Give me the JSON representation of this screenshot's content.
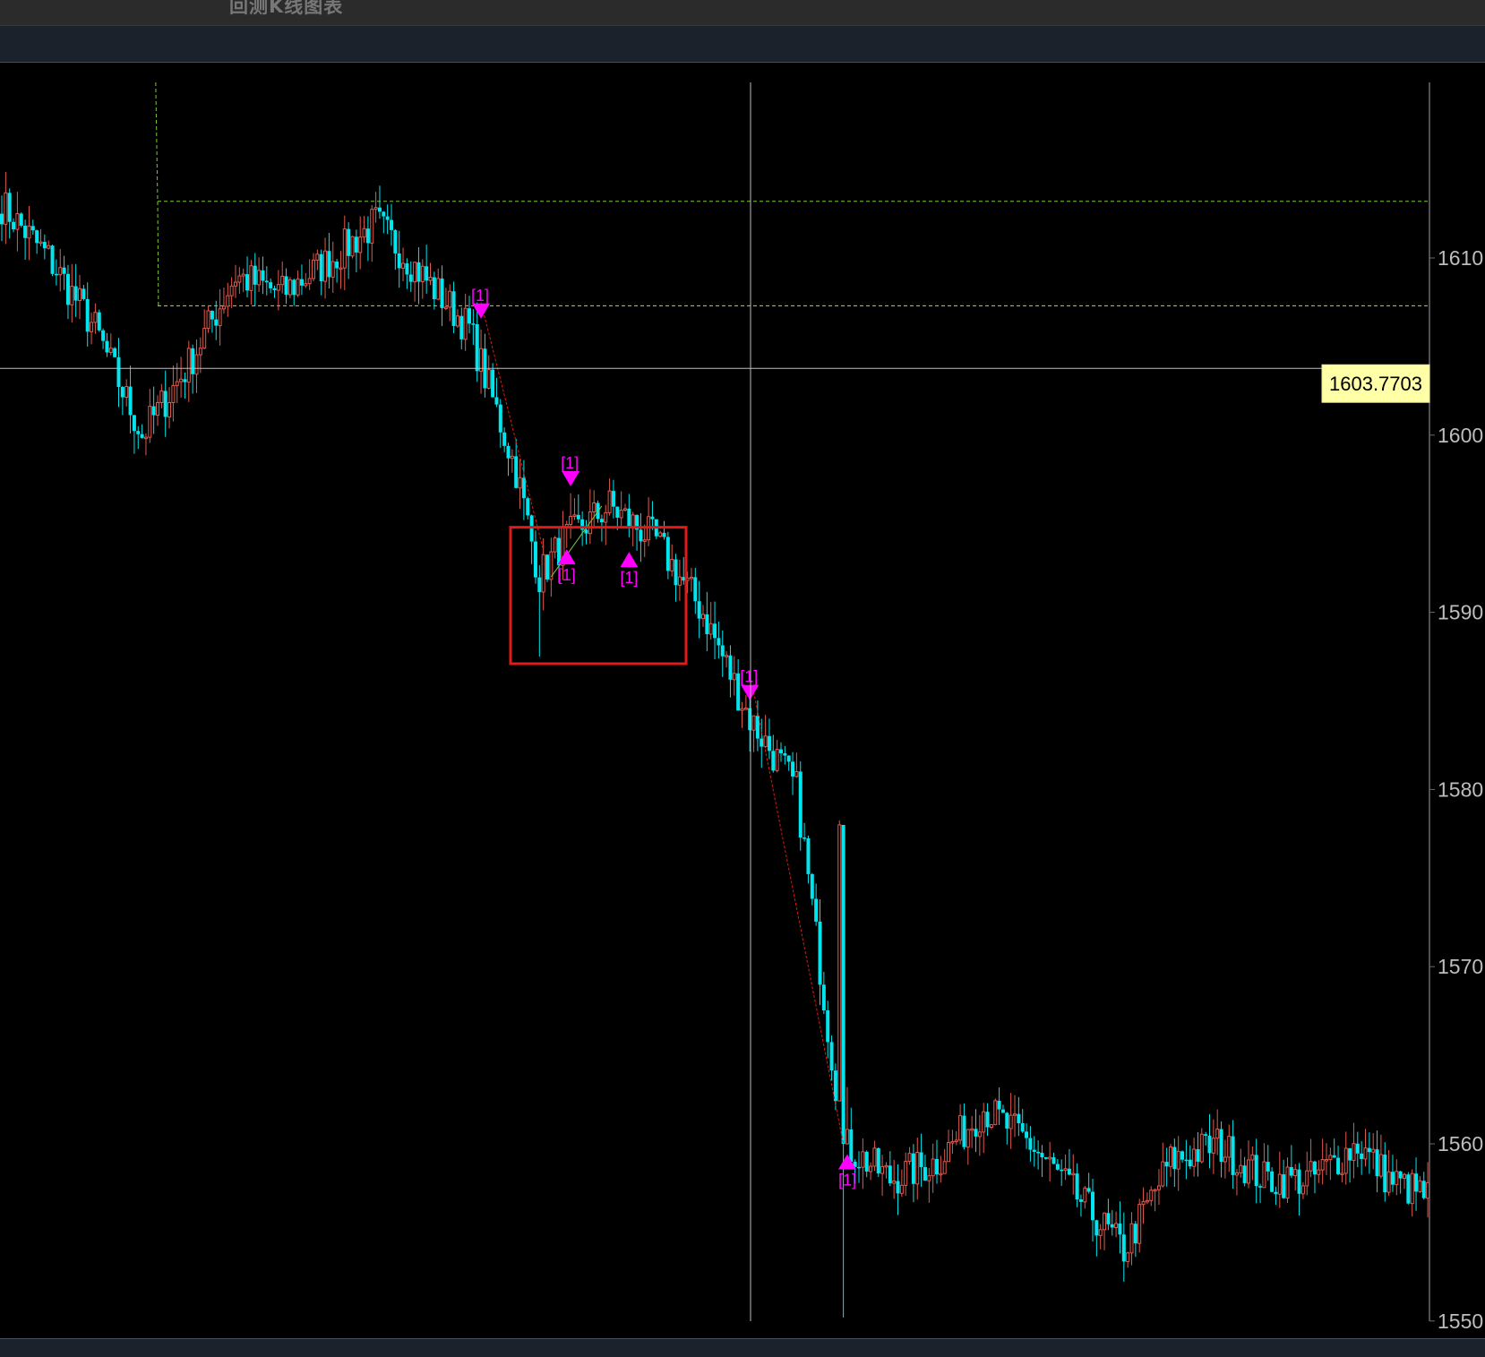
{
  "window": {
    "title": "回测K线图表"
  },
  "colors": {
    "background": "#000000",
    "bull": "#e05a4e",
    "bear": "#00e5ee",
    "signal": "#ff00ff",
    "trend_line": "#e0190f",
    "box": "#e0191b",
    "level_upper": "#7ec833",
    "level_lower": "#d4d40a",
    "crosshair": "#bdbdbd",
    "price_tag_bg": "#ffffa8",
    "axis_text": "#bdbdbd"
  },
  "crosshair": {
    "price_label": "1603.7703"
  },
  "signal_label": "[1]",
  "chart_data": {
    "type": "candlestick",
    "title": "",
    "ylim": [
      1550,
      1615
    ],
    "y_ticks": [
      {
        "value": 1610,
        "label": "1610"
      },
      {
        "value": 1600,
        "label": "1600"
      },
      {
        "value": 1590,
        "label": "1590"
      },
      {
        "value": 1580,
        "label": "1580"
      },
      {
        "value": 1570,
        "label": "1570"
      },
      {
        "value": 1560,
        "label": "1560"
      },
      {
        "value": 1550,
        "label": "1550"
      }
    ],
    "horizontal_levels": [
      {
        "name": "upper",
        "value": 1613.2
      },
      {
        "name": "lower",
        "value": 1607.3
      }
    ],
    "crosshair_price": 1603.77,
    "anchors": [
      [
        0,
        1613
      ],
      [
        12,
        1610
      ],
      [
        24,
        1606
      ],
      [
        36,
        1600
      ],
      [
        48,
        1604
      ],
      [
        60,
        1609
      ],
      [
        72,
        1608
      ],
      [
        85,
        1610
      ],
      [
        96,
        1612
      ],
      [
        108,
        1609
      ],
      [
        120,
        1606
      ],
      [
        132,
        1598
      ],
      [
        138,
        1592
      ],
      [
        144,
        1594
      ],
      [
        156,
        1596
      ],
      [
        168,
        1594
      ],
      [
        180,
        1590
      ],
      [
        192,
        1584
      ],
      [
        204,
        1580
      ],
      [
        216,
        1560
      ],
      [
        228,
        1558
      ],
      [
        240,
        1559
      ],
      [
        252,
        1562
      ],
      [
        264,
        1560
      ],
      [
        276,
        1557
      ],
      [
        288,
        1554
      ],
      [
        300,
        1559
      ],
      [
        312,
        1560
      ],
      [
        324,
        1558
      ],
      [
        336,
        1558
      ],
      [
        348,
        1560
      ],
      [
        356,
        1558
      ],
      [
        366,
        1557
      ]
    ],
    "signals": [
      {
        "index": 123,
        "direction": "down",
        "label": "[1]"
      },
      {
        "index": 146,
        "direction": "down",
        "label": "[1]"
      },
      {
        "index": 145,
        "direction": "up",
        "label": "[1]"
      },
      {
        "index": 161,
        "direction": "up",
        "label": "[1]"
      },
      {
        "index": 192,
        "direction": "down",
        "label": "[1]"
      },
      {
        "index": 217,
        "direction": "up",
        "label": "[1]"
      }
    ]
  }
}
